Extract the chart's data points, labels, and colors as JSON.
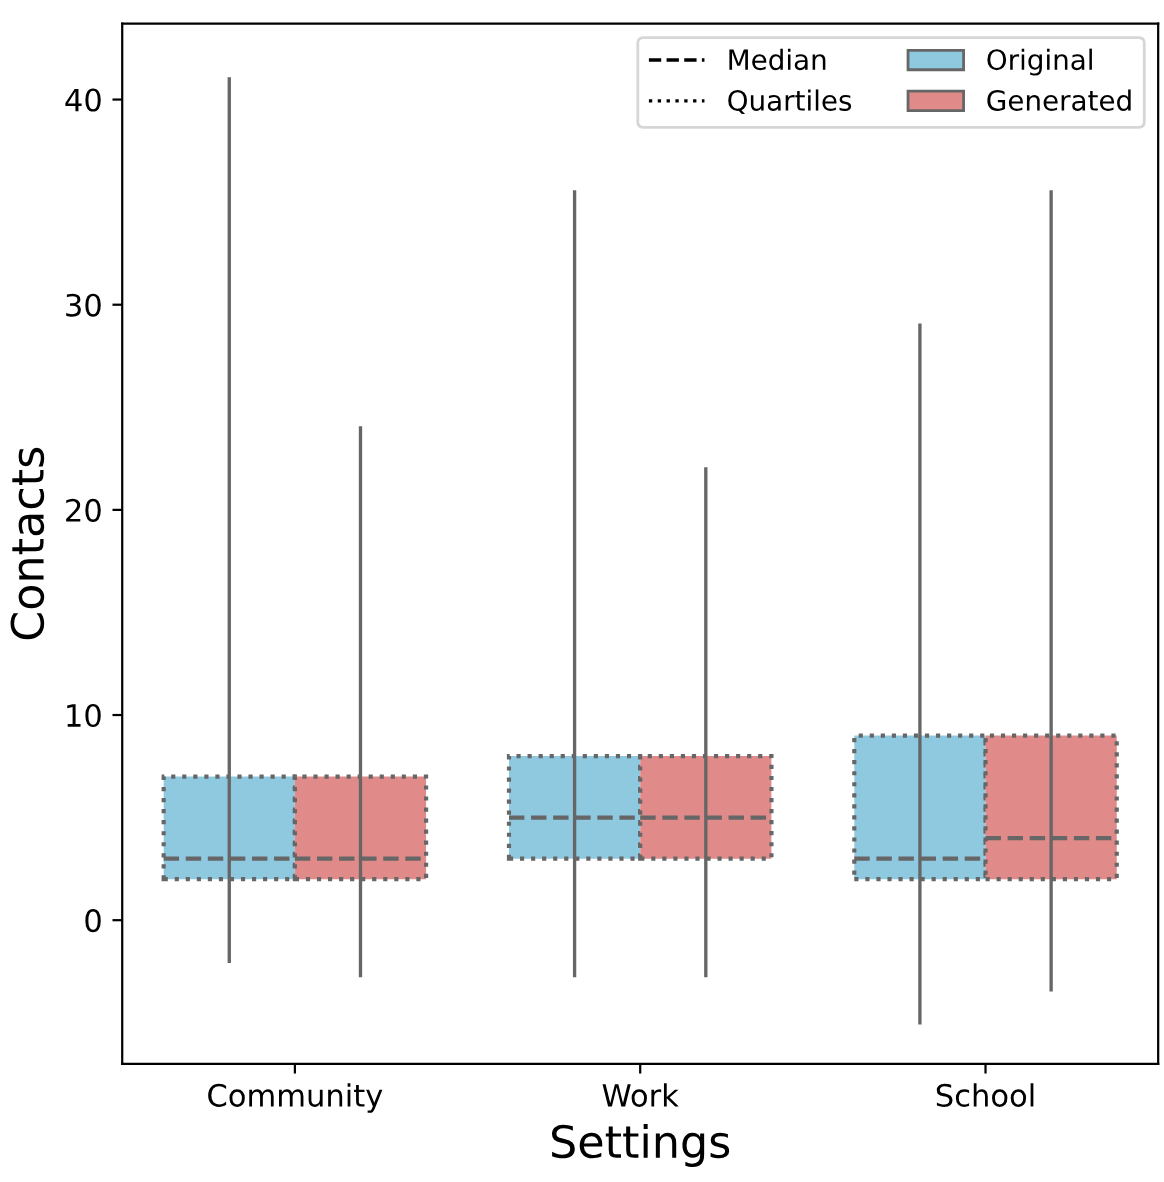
{
  "chart_data": {
    "type": "box",
    "xlabel": "Settings",
    "ylabel": "Contacts",
    "categories": [
      "Community",
      "Work",
      "School"
    ],
    "series": [
      {
        "name": "Original",
        "color": "#8fc9e0",
        "boxes": [
          {
            "low": -2.0,
            "q1": 2,
            "median": 3,
            "q3": 7,
            "high": 41
          },
          {
            "low": -2.7,
            "q1": 3,
            "median": 5,
            "q3": 8,
            "high": 35.5
          },
          {
            "low": -5.0,
            "q1": 2,
            "median": 3,
            "q3": 9,
            "high": 29
          }
        ]
      },
      {
        "name": "Generated",
        "color": "#e08a8a",
        "boxes": [
          {
            "low": -2.7,
            "q1": 2,
            "median": 3,
            "q3": 7,
            "high": 24
          },
          {
            "low": -2.7,
            "q1": 3,
            "median": 5,
            "q3": 8,
            "high": 22
          },
          {
            "low": -3.4,
            "q1": 2,
            "median": 4,
            "q3": 9,
            "high": 35.5
          }
        ]
      }
    ],
    "annotations": [
      "Median",
      "Quartiles"
    ],
    "ylim": [
      -7,
      43.7
    ],
    "yticks": [
      0,
      10,
      20,
      30,
      40
    ],
    "grid": false,
    "legend": "top right"
  }
}
